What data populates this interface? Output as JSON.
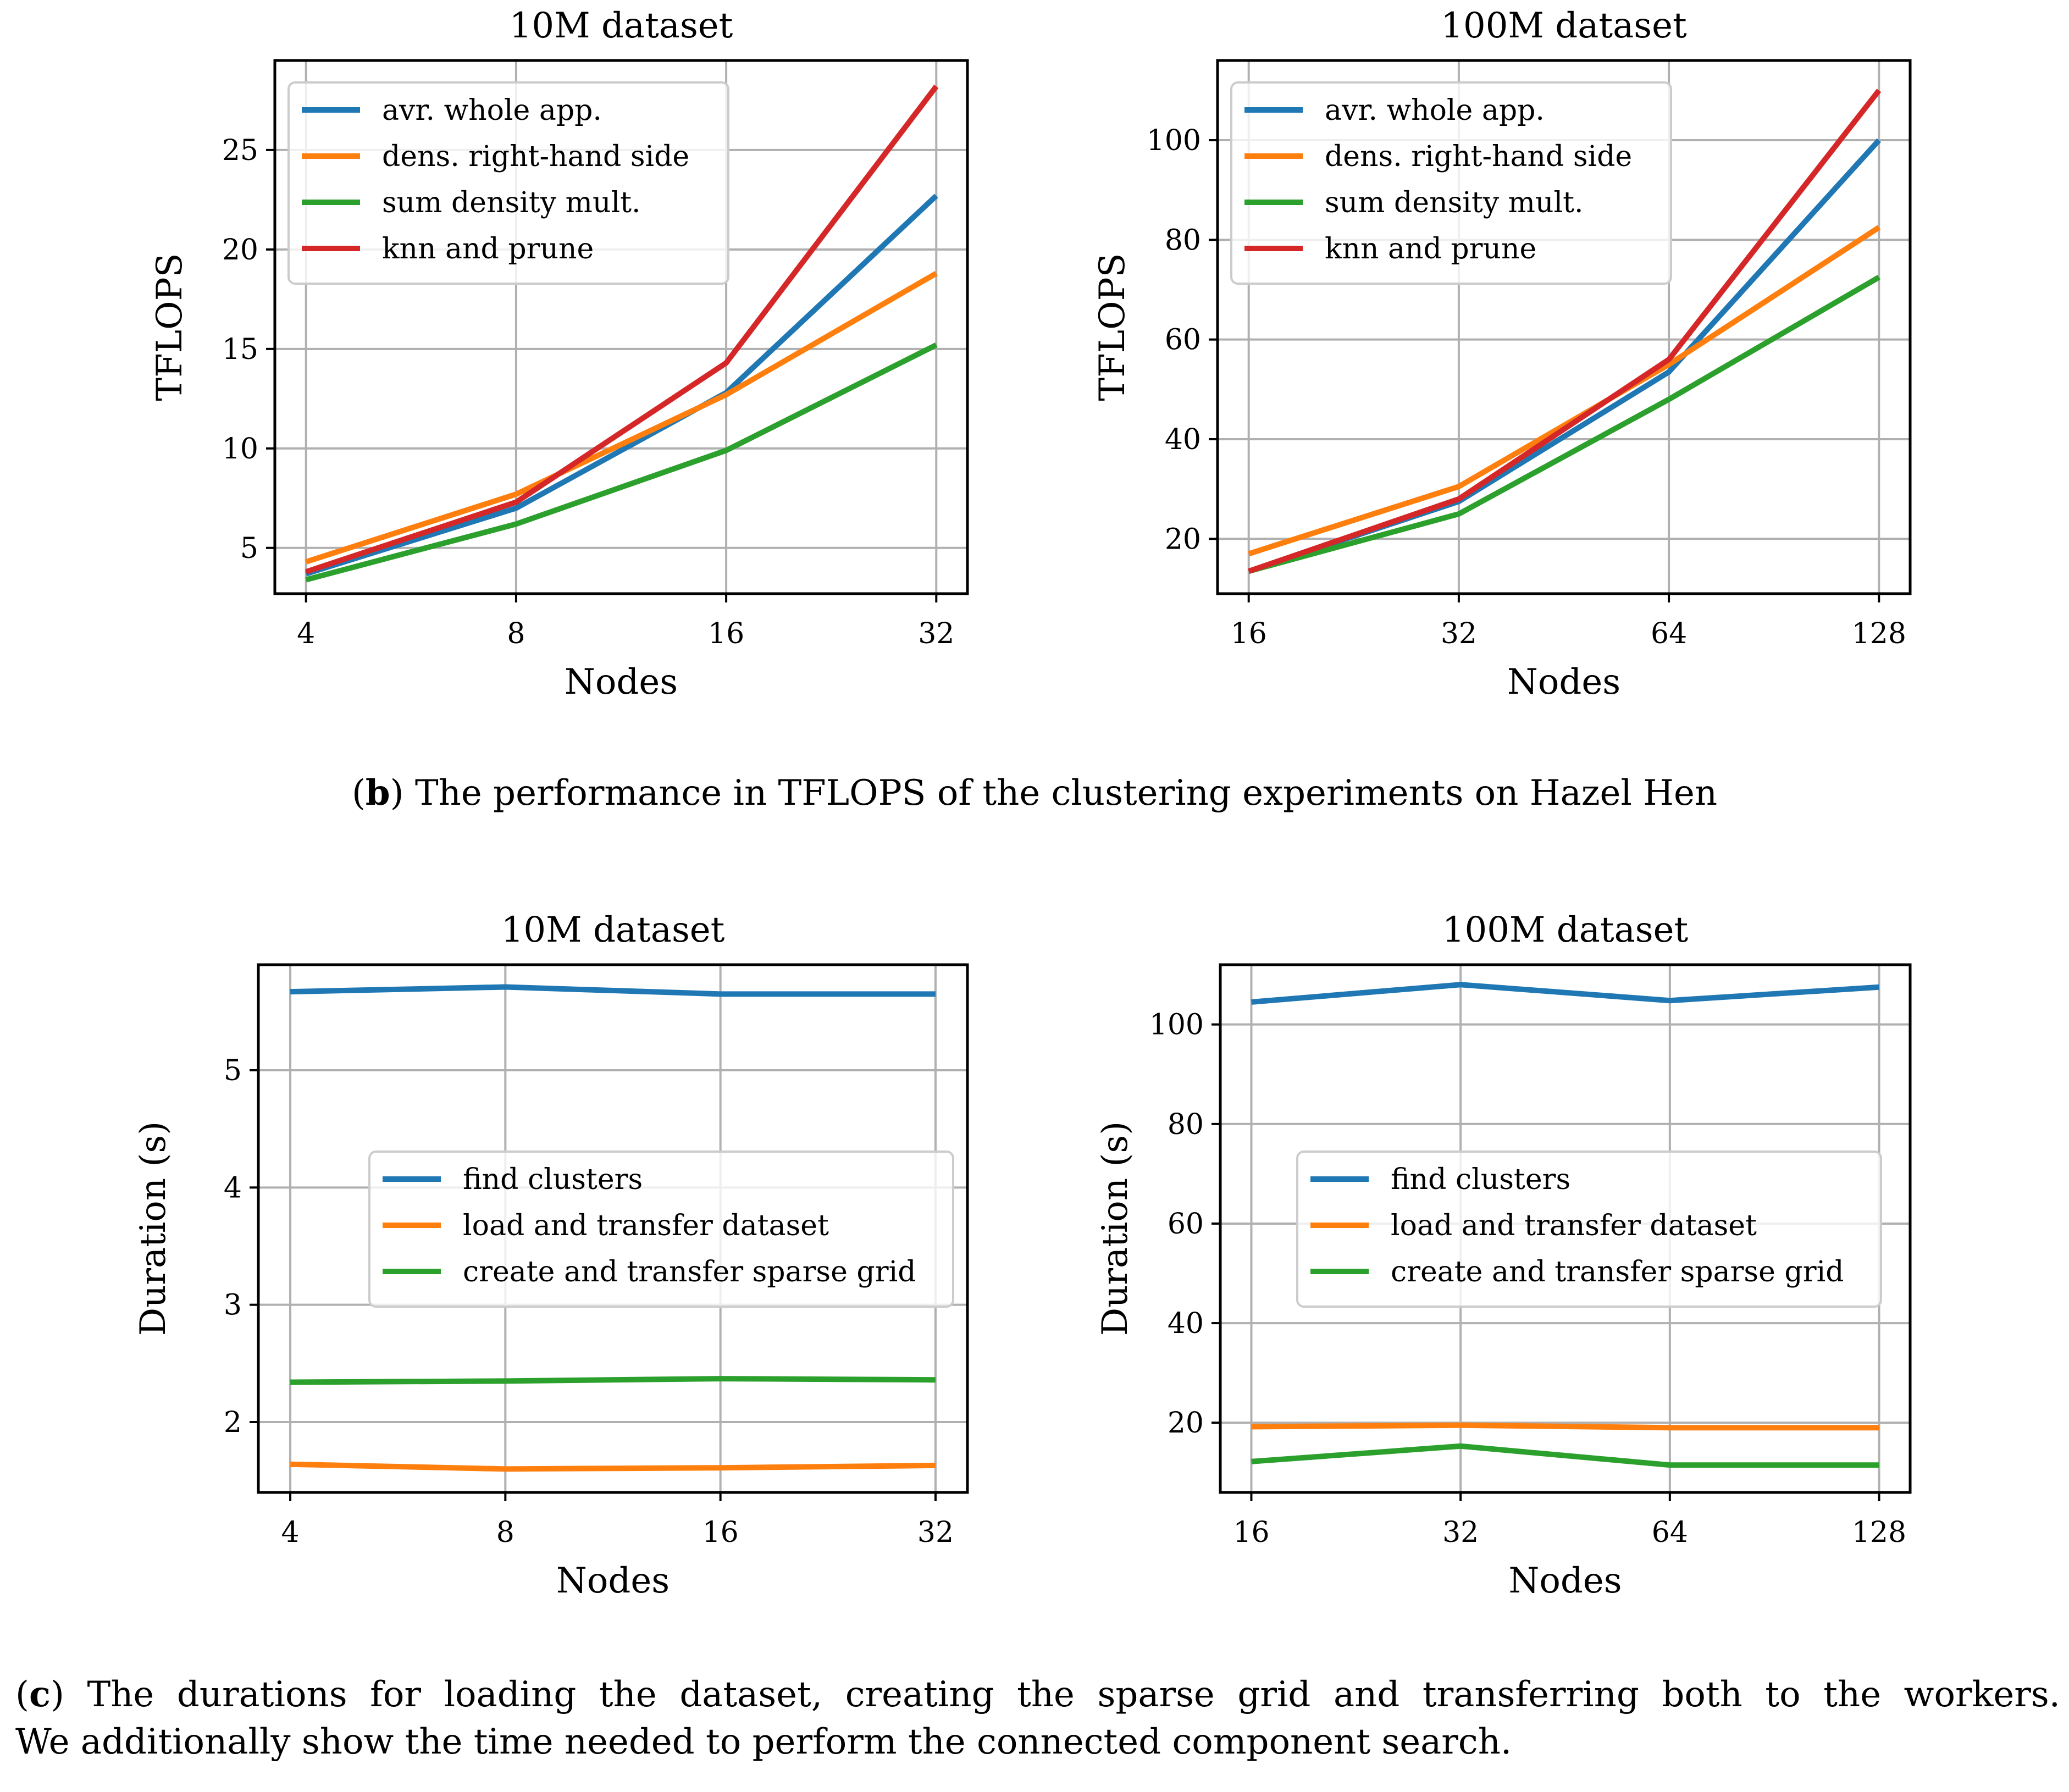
{
  "colors": {
    "blue": "#1f77b4",
    "orange": "#ff7f0e",
    "green": "#2ca02c",
    "red": "#d62728",
    "grid": "#b0b0b0"
  },
  "captions": {
    "b": {
      "label": "b",
      "text": "The performance in TFLOPS of the clustering experiments on Hazel Hen"
    },
    "c": {
      "label": "c",
      "line1": "The durations for loading the dataset, creating the sparse grid and transferring both to the workers.",
      "line2": "We additionally show the time needed to perform the connected component search."
    }
  },
  "chart_data": [
    {
      "type": "line",
      "title": "10M dataset",
      "xlabel": "Nodes",
      "ylabel": "TFLOPS",
      "categories": [
        "4",
        "8",
        "16",
        "32"
      ],
      "yticks": [
        5,
        10,
        15,
        20,
        25
      ],
      "ylim": [
        2.7,
        29.5
      ],
      "grid": true,
      "legend_position": "upper-left",
      "series": [
        {
          "name": "avr. whole app.",
          "color": "blue",
          "values": [
            3.7,
            7.0,
            12.8,
            22.7
          ]
        },
        {
          "name": "dens. right-hand side",
          "color": "orange",
          "values": [
            4.3,
            7.7,
            12.7,
            18.8
          ]
        },
        {
          "name": "sum density mult.",
          "color": "green",
          "values": [
            3.4,
            6.2,
            9.9,
            15.2
          ]
        },
        {
          "name": "knn and prune",
          "color": "red",
          "values": [
            3.8,
            7.3,
            14.3,
            28.2
          ]
        }
      ]
    },
    {
      "type": "line",
      "title": "100M dataset",
      "xlabel": "Nodes",
      "ylabel": "TFLOPS",
      "categories": [
        "16",
        "32",
        "64",
        "128"
      ],
      "yticks": [
        20,
        40,
        60,
        80,
        100
      ],
      "ylim": [
        9,
        116
      ],
      "grid": true,
      "legend_position": "upper-left",
      "series": [
        {
          "name": "avr. whole app.",
          "color": "blue",
          "values": [
            13.5,
            27.5,
            53.5,
            100
          ]
        },
        {
          "name": "dens. right-hand side",
          "color": "orange",
          "values": [
            17,
            30.5,
            55,
            82.5
          ]
        },
        {
          "name": "sum density mult.",
          "color": "green",
          "values": [
            13.5,
            25,
            48,
            72.5
          ]
        },
        {
          "name": "knn and prune",
          "color": "red",
          "values": [
            13.5,
            28,
            56,
            110
          ]
        }
      ]
    },
    {
      "type": "line",
      "title": "10M dataset",
      "xlabel": "Nodes",
      "ylabel": "Duration (s)",
      "categories": [
        "4",
        "8",
        "16",
        "32"
      ],
      "yticks": [
        2,
        3,
        4,
        5
      ],
      "ylim": [
        1.4,
        5.9
      ],
      "grid": true,
      "legend_position": "center-right",
      "series": [
        {
          "name": "find clusters",
          "color": "blue",
          "values": [
            5.67,
            5.71,
            5.65,
            5.65
          ]
        },
        {
          "name": "load and transfer dataset",
          "color": "orange",
          "values": [
            1.64,
            1.6,
            1.61,
            1.63
          ]
        },
        {
          "name": "create and transfer sparse grid",
          "color": "green",
          "values": [
            2.34,
            2.35,
            2.37,
            2.36
          ]
        }
      ]
    },
    {
      "type": "line",
      "title": "100M dataset",
      "xlabel": "Nodes",
      "ylabel": "Duration (s)",
      "categories": [
        "16",
        "32",
        "64",
        "128"
      ],
      "yticks": [
        20,
        40,
        60,
        80,
        100
      ],
      "ylim": [
        6,
        112
      ],
      "grid": true,
      "legend_position": "center-right",
      "series": [
        {
          "name": "find clusters",
          "color": "blue",
          "values": [
            104.5,
            108,
            104.8,
            107.5
          ]
        },
        {
          "name": "load and transfer dataset",
          "color": "orange",
          "values": [
            19.2,
            19.5,
            19.0,
            19.0
          ]
        },
        {
          "name": "create and transfer sparse grid",
          "color": "green",
          "values": [
            12.2,
            15.3,
            11.5,
            11.5
          ]
        }
      ]
    }
  ]
}
